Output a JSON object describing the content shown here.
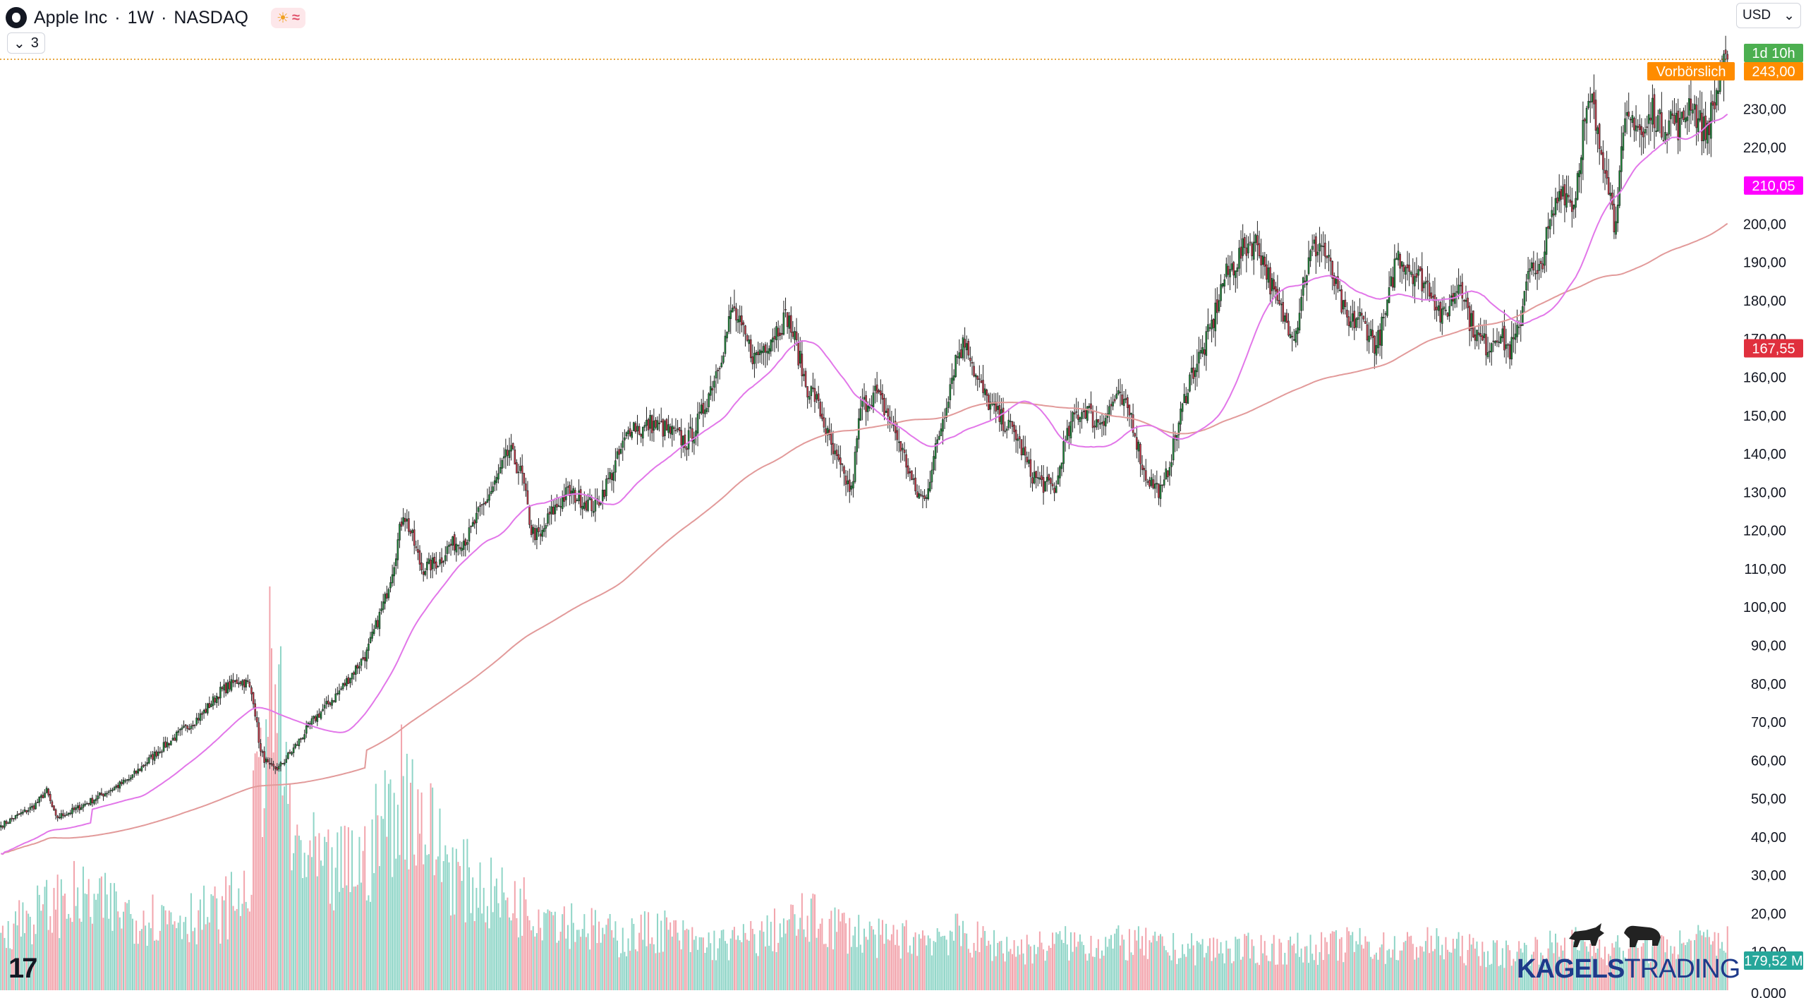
{
  "header": {
    "symbol": "Apple Inc",
    "separator1": "·",
    "interval": "1W",
    "separator2": "·",
    "exchange": "NASDAQ",
    "sun_icon": "☀",
    "wave_icon": "≈",
    "collapse_count": "3",
    "currency": "USD"
  },
  "brand": {
    "part1": "KAGELS",
    "part2": "TRADING"
  },
  "colors": {
    "up": "#1e8f3c",
    "down": "#cf3a4b",
    "vol_up": "#8fd5c7",
    "vol_down": "#f2a4ac",
    "sma_fast": "#e277e9",
    "sma_slow": "#e29a9a",
    "price_label": "#4caf50",
    "premarket": "#ff8c00",
    "sma_fast_label": "#ff00ff",
    "sma_slow_label": "#e0303e",
    "volume_label": "#26a69a"
  },
  "chart_data": {
    "type": "candlestick",
    "y_axis": {
      "min": 0,
      "max": 250,
      "ticks": [
        "10,00",
        "20,00",
        "30,00",
        "40,00",
        "50,00",
        "60,00",
        "70,00",
        "80,00",
        "90,00",
        "100,00",
        "110,00",
        "120,00",
        "130,00",
        "140,00",
        "150,00",
        "160,00",
        "170,00",
        "180,00",
        "190,00",
        "200,00",
        "210,00",
        "220,00",
        "230,00"
      ],
      "tick_values": [
        10,
        20,
        30,
        40,
        50,
        60,
        70,
        80,
        90,
        100,
        110,
        120,
        130,
        140,
        150,
        160,
        170,
        180,
        190,
        200,
        210,
        220,
        230
      ],
      "extra_bottom_tick": "0,000"
    },
    "labels": {
      "countdown": "1d 10h",
      "last_price": "243,00",
      "premarket_text": "Vorbörslich",
      "premarket_price": "243,00",
      "sma_fast_value": "210,05",
      "sma_slow_value": "167,55",
      "volume_value": "179,52 M"
    },
    "anchors": [
      [
        0,
        43
      ],
      [
        18,
        48
      ],
      [
        25,
        52
      ],
      [
        30,
        45
      ],
      [
        40,
        47
      ],
      [
        55,
        51
      ],
      [
        70,
        55
      ],
      [
        85,
        62
      ],
      [
        100,
        68
      ],
      [
        110,
        72
      ],
      [
        120,
        78
      ],
      [
        130,
        81
      ],
      [
        135,
        80
      ],
      [
        138,
        76
      ],
      [
        142,
        62
      ],
      [
        147,
        58
      ],
      [
        152,
        58
      ],
      [
        160,
        63
      ],
      [
        170,
        70
      ],
      [
        185,
        78
      ],
      [
        200,
        88
      ],
      [
        210,
        102
      ],
      [
        215,
        112
      ],
      [
        220,
        125
      ],
      [
        225,
        118
      ],
      [
        230,
        110
      ],
      [
        240,
        112
      ],
      [
        245,
        116
      ],
      [
        255,
        118
      ],
      [
        262,
        125
      ],
      [
        270,
        132
      ],
      [
        278,
        141
      ],
      [
        285,
        134
      ],
      [
        290,
        120
      ],
      [
        295,
        118
      ],
      [
        300,
        124
      ],
      [
        310,
        130
      ],
      [
        318,
        128
      ],
      [
        325,
        126
      ],
      [
        335,
        136
      ],
      [
        345,
        148
      ],
      [
        350,
        146
      ],
      [
        355,
        148
      ],
      [
        365,
        146
      ],
      [
        375,
        143
      ],
      [
        382,
        149
      ],
      [
        390,
        160
      ],
      [
        395,
        168
      ],
      [
        400,
        178
      ],
      [
        405,
        172
      ],
      [
        412,
        165
      ],
      [
        420,
        170
      ],
      [
        430,
        176
      ],
      [
        435,
        168
      ],
      [
        440,
        158
      ],
      [
        445,
        155
      ],
      [
        450,
        148
      ],
      [
        455,
        140
      ],
      [
        460,
        135
      ],
      [
        465,
        130
      ],
      [
        470,
        152
      ],
      [
        478,
        156
      ],
      [
        485,
        150
      ],
      [
        492,
        142
      ],
      [
        500,
        130
      ],
      [
        505,
        128
      ],
      [
        512,
        143
      ],
      [
        518,
        156
      ],
      [
        522,
        165
      ],
      [
        528,
        170
      ],
      [
        533,
        160
      ],
      [
        538,
        155
      ],
      [
        545,
        150
      ],
      [
        555,
        145
      ],
      [
        563,
        135
      ],
      [
        570,
        132
      ],
      [
        577,
        131
      ],
      [
        580,
        140
      ],
      [
        587,
        150
      ],
      [
        594,
        152
      ],
      [
        598,
        148
      ],
      [
        604,
        150
      ],
      [
        610,
        155
      ],
      [
        618,
        150
      ],
      [
        625,
        135
      ],
      [
        630,
        132
      ],
      [
        635,
        130
      ],
      [
        640,
        140
      ],
      [
        645,
        150
      ],
      [
        650,
        160
      ],
      [
        658,
        168
      ],
      [
        663,
        175
      ],
      [
        668,
        185
      ],
      [
        675,
        190
      ],
      [
        682,
        195
      ],
      [
        687,
        195
      ],
      [
        692,
        188
      ],
      [
        697,
        180
      ],
      [
        702,
        175
      ],
      [
        708,
        172
      ],
      [
        712,
        185
      ],
      [
        717,
        193
      ],
      [
        722,
        195
      ],
      [
        727,
        188
      ],
      [
        732,
        180
      ],
      [
        737,
        173
      ],
      [
        742,
        176
      ],
      [
        748,
        172
      ],
      [
        752,
        168
      ],
      [
        758,
        178
      ],
      [
        763,
        192
      ],
      [
        768,
        190
      ],
      [
        773,
        187
      ],
      [
        778,
        185
      ],
      [
        782,
        183
      ],
      [
        788,
        175
      ],
      [
        793,
        180
      ],
      [
        798,
        186
      ],
      [
        803,
        175
      ],
      [
        808,
        170
      ],
      [
        813,
        168
      ],
      [
        818,
        172
      ],
      [
        825,
        167
      ],
      [
        830,
        172
      ],
      [
        835,
        190
      ],
      [
        840,
        185
      ],
      [
        845,
        196
      ],
      [
        853,
        210
      ],
      [
        860,
        205
      ],
      [
        865,
        225
      ],
      [
        870,
        232
      ],
      [
        873,
        222
      ],
      [
        878,
        215
      ],
      [
        882,
        200
      ],
      [
        888,
        225
      ],
      [
        893,
        228
      ],
      [
        898,
        222
      ],
      [
        903,
        230
      ],
      [
        908,
        225
      ],
      [
        913,
        228
      ],
      [
        918,
        225
      ],
      [
        924,
        233
      ],
      [
        928,
        227
      ],
      [
        932,
        224
      ],
      [
        936,
        230
      ],
      [
        940,
        238
      ],
      [
        944,
        243
      ]
    ],
    "volume_anchors": [
      [
        0,
        12
      ],
      [
        40,
        18
      ],
      [
        80,
        14
      ],
      [
        120,
        15
      ],
      [
        135,
        20
      ],
      [
        145,
        55
      ],
      [
        150,
        60
      ],
      [
        160,
        28
      ],
      [
        180,
        22
      ],
      [
        200,
        26
      ],
      [
        210,
        32
      ],
      [
        218,
        40
      ],
      [
        225,
        36
      ],
      [
        235,
        30
      ],
      [
        250,
        22
      ],
      [
        270,
        18
      ],
      [
        300,
        15
      ],
      [
        320,
        12
      ],
      [
        340,
        10
      ],
      [
        360,
        12
      ],
      [
        380,
        9
      ],
      [
        400,
        9
      ],
      [
        420,
        11
      ],
      [
        440,
        14
      ],
      [
        460,
        12
      ],
      [
        480,
        10
      ],
      [
        500,
        10
      ],
      [
        520,
        11
      ],
      [
        540,
        9
      ],
      [
        560,
        8
      ],
      [
        580,
        9
      ],
      [
        600,
        9
      ],
      [
        620,
        9
      ],
      [
        640,
        8
      ],
      [
        660,
        8
      ],
      [
        680,
        8
      ],
      [
        700,
        8
      ],
      [
        720,
        8
      ],
      [
        740,
        9
      ],
      [
        760,
        8
      ],
      [
        780,
        9
      ],
      [
        800,
        8
      ],
      [
        820,
        7
      ],
      [
        840,
        8
      ],
      [
        860,
        9
      ],
      [
        880,
        8
      ],
      [
        900,
        8
      ],
      [
        920,
        9
      ],
      [
        944,
        10
      ]
    ],
    "sma_fast_period": 50,
    "sma_slow_period": 200
  }
}
